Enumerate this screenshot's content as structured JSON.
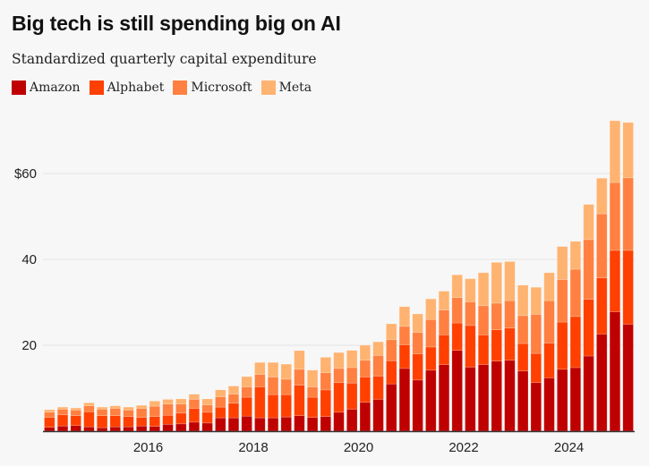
{
  "chart_data": {
    "type": "bar",
    "stacked": true,
    "title": "Big tech is still spending big on AI",
    "subtitle": "Standardized quarterly capital expenditure",
    "xlabel": "",
    "ylabel": "",
    "ylim": [
      0,
      75
    ],
    "yticks": [
      {
        "value": 20,
        "label": "20"
      },
      {
        "value": 40,
        "label": "40"
      },
      {
        "value": 60,
        "label": "$60"
      }
    ],
    "xticks": [
      {
        "index": 8,
        "label": "2016"
      },
      {
        "index": 16,
        "label": "2018"
      },
      {
        "index": 24,
        "label": "2020"
      },
      {
        "index": 32,
        "label": "2022"
      },
      {
        "index": 40,
        "label": "2024"
      }
    ],
    "grid": true,
    "legend_position": "top-left",
    "categories": [
      "2014 Q1",
      "2014 Q2",
      "2014 Q3",
      "2014 Q4",
      "2015 Q1",
      "2015 Q2",
      "2015 Q3",
      "2015 Q4",
      "2016 Q1",
      "2016 Q2",
      "2016 Q3",
      "2016 Q4",
      "2017 Q1",
      "2017 Q2",
      "2017 Q3",
      "2017 Q4",
      "2018 Q1",
      "2018 Q2",
      "2018 Q3",
      "2018 Q4",
      "2019 Q1",
      "2019 Q2",
      "2019 Q3",
      "2019 Q4",
      "2020 Q1",
      "2020 Q2",
      "2020 Q3",
      "2020 Q4",
      "2021 Q1",
      "2021 Q2",
      "2021 Q3",
      "2021 Q4",
      "2022 Q1",
      "2022 Q2",
      "2022 Q3",
      "2022 Q4",
      "2023 Q1",
      "2023 Q2",
      "2023 Q3",
      "2023 Q4",
      "2024 Q1",
      "2024 Q2",
      "2024 Q3",
      "2024 Q4",
      "2025 Q1"
    ],
    "series": [
      {
        "name": "Amazon",
        "color": "#bf0000",
        "values": [
          0.9,
          1.2,
          1.3,
          1.0,
          0.8,
          1.0,
          1.0,
          1.2,
          1.1,
          1.6,
          1.7,
          2.1,
          1.9,
          3.1,
          3.1,
          3.5,
          3.1,
          3.1,
          3.3,
          3.6,
          3.2,
          3.4,
          4.4,
          5.1,
          6.7,
          7.4,
          11.0,
          14.6,
          11.9,
          14.2,
          15.5,
          18.8,
          14.9,
          15.5,
          16.3,
          16.5,
          14.0,
          11.3,
          12.4,
          14.4,
          14.8,
          17.5,
          22.6,
          27.8,
          24.9
        ]
      },
      {
        "name": "Alphabet",
        "color": "#ff4000",
        "values": [
          2.3,
          2.6,
          2.3,
          3.5,
          2.8,
          2.6,
          2.4,
          2.0,
          2.3,
          2.1,
          2.5,
          3.2,
          2.5,
          2.5,
          3.4,
          4.4,
          7.2,
          5.4,
          5.2,
          7.1,
          4.7,
          6.2,
          6.9,
          6.1,
          5.9,
          5.4,
          5.4,
          5.5,
          6.1,
          5.4,
          6.9,
          6.4,
          9.7,
          6.9,
          7.3,
          7.5,
          6.4,
          6.8,
          8.1,
          11.0,
          11.9,
          13.2,
          13.1,
          14.3,
          17.2
        ]
      },
      {
        "name": "Microsoft",
        "color": "#ff8040",
        "values": [
          1.2,
          1.3,
          1.3,
          1.4,
          1.5,
          1.7,
          1.5,
          2.1,
          2.4,
          2.6,
          2.1,
          2.1,
          1.7,
          2.4,
          2.1,
          2.4,
          2.9,
          4.1,
          3.6,
          3.7,
          2.4,
          4.0,
          3.3,
          3.6,
          3.9,
          4.8,
          4.9,
          4.3,
          5.0,
          6.4,
          5.8,
          5.9,
          5.5,
          6.8,
          6.2,
          6.4,
          6.5,
          9.1,
          9.9,
          9.9,
          11.0,
          13.9,
          14.9,
          15.8,
          16.9
        ]
      },
      {
        "name": "Meta",
        "color": "#ffb370",
        "values": [
          0.6,
          0.5,
          0.5,
          0.7,
          0.5,
          0.6,
          0.7,
          0.7,
          1.2,
          1.1,
          1.2,
          1.2,
          1.4,
          1.6,
          1.9,
          2.4,
          2.8,
          3.4,
          3.5,
          4.35,
          3.9,
          3.6,
          3.7,
          4.0,
          3.5,
          3.2,
          3.7,
          4.6,
          4.3,
          4.8,
          4.4,
          5.3,
          5.4,
          7.7,
          9.5,
          9.1,
          7.1,
          6.3,
          6.5,
          7.7,
          6.5,
          8.2,
          8.3,
          14.4,
          12.9
        ]
      }
    ]
  }
}
